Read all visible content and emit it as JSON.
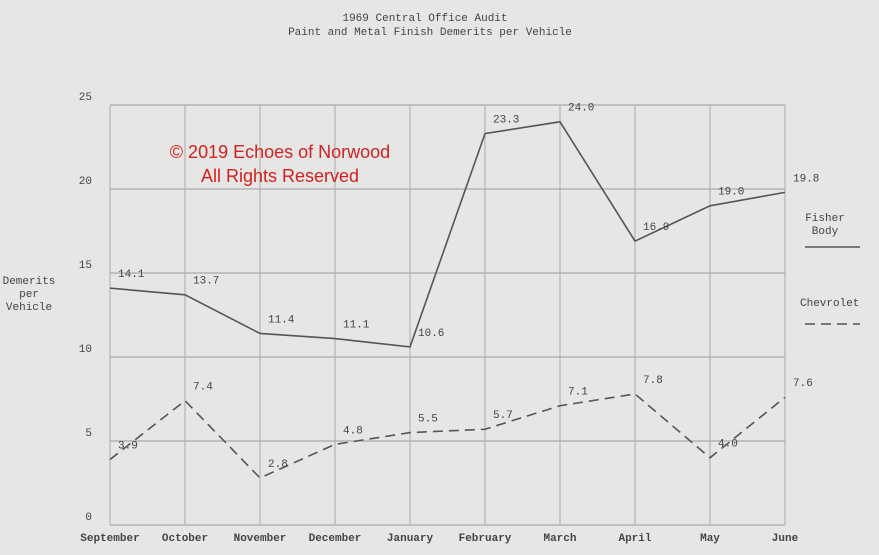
{
  "chart_data": {
    "type": "line",
    "title": "1969 Central Office Audit",
    "subtitle": "Paint and Metal Finish Demerits per Vehicle",
    "y_label": "Demerits per Vehicle",
    "annotations": [
      "© 2019 Echoes of Norwood",
      "All Rights Reserved"
    ],
    "categories": [
      "September",
      "October",
      "November",
      "December",
      "January",
      "February",
      "March",
      "April",
      "May",
      "June"
    ],
    "series": [
      {
        "name": "Fisher Body",
        "color": "#555555",
        "style": "solid",
        "values": [
          14.1,
          13.7,
          11.4,
          11.1,
          10.6,
          23.3,
          24.0,
          16.9,
          19.0,
          19.8
        ],
        "value_labels": [
          "14.1",
          "13.7",
          "11.4",
          "11.1",
          "10.6",
          "23.3",
          "24.0",
          "16.9",
          "19.0",
          "19.8"
        ]
      },
      {
        "name": "Chevrolet",
        "color": "#555555",
        "style": "dashed",
        "values": [
          3.9,
          7.4,
          2.8,
          4.8,
          5.5,
          5.7,
          7.1,
          7.8,
          4.0,
          7.6
        ],
        "value_labels": [
          "3.9",
          "7.4",
          "2.8",
          "4.8",
          "5.5",
          "5.7",
          "7.1",
          "7.8",
          "4.0",
          "7.6"
        ]
      }
    ],
    "ylim": [
      0,
      25
    ],
    "yticks": [
      0,
      5,
      10,
      15,
      20,
      25
    ],
    "grid": true
  }
}
